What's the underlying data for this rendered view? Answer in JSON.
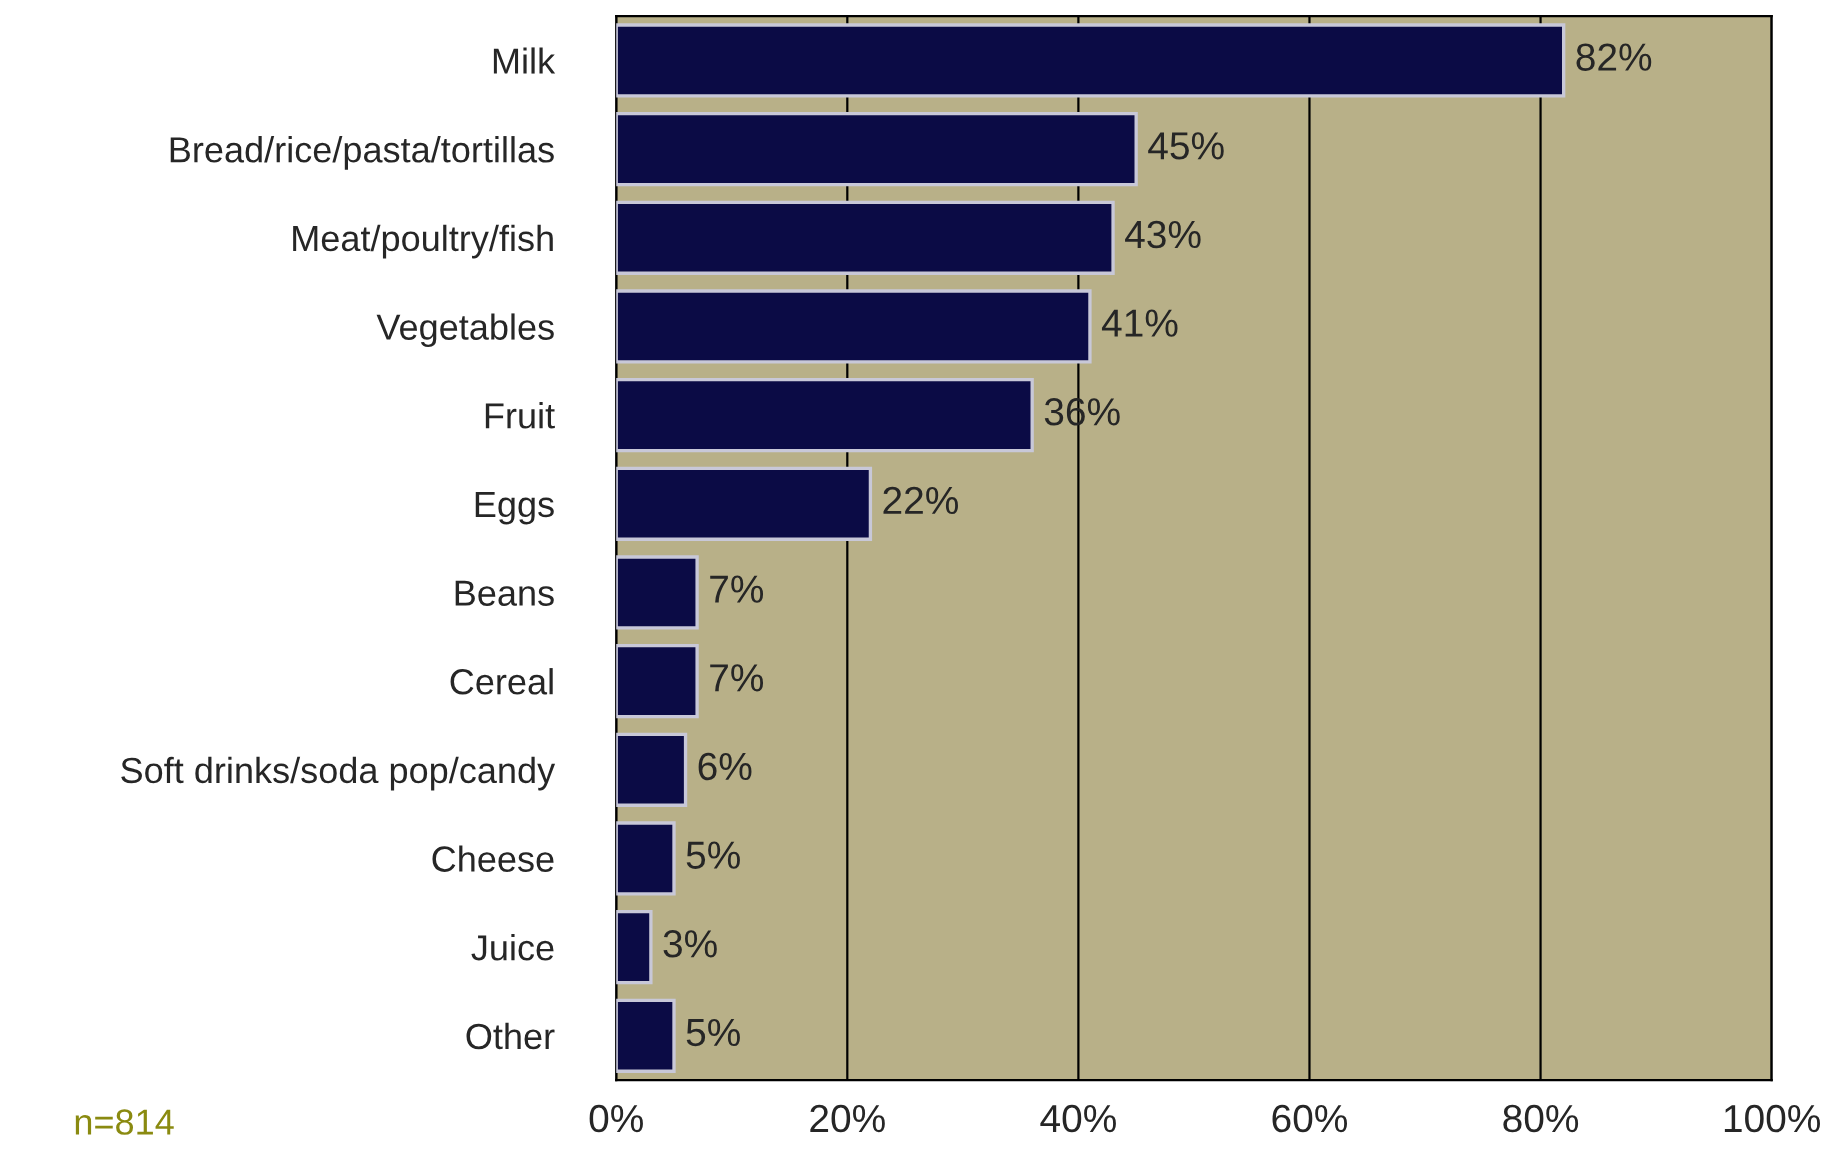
{
  "chart_data": {
    "type": "bar",
    "orientation": "horizontal",
    "categories": [
      "Milk",
      "Bread/rice/pasta/tortillas",
      "Meat/poultry/fish",
      "Vegetables",
      "Fruit",
      "Eggs",
      "Beans",
      "Cereal",
      "Soft drinks/soda pop/candy",
      "Cheese",
      "Juice",
      "Other"
    ],
    "values": [
      82,
      45,
      43,
      41,
      36,
      22,
      7,
      7,
      6,
      5,
      3,
      5
    ],
    "value_labels": [
      "82%",
      "45%",
      "43%",
      "41%",
      "36%",
      "22%",
      "7%",
      "7%",
      "6%",
      "5%",
      "3%",
      "5%"
    ],
    "color": "#0b0b45",
    "xlim": [
      0,
      100
    ],
    "xticks": [
      {
        "value": 0,
        "label": "0%"
      },
      {
        "value": 20,
        "label": "20%"
      },
      {
        "value": 40,
        "label": "40%"
      },
      {
        "value": 60,
        "label": "60%"
      },
      {
        "value": 80,
        "label": "80%"
      },
      {
        "value": 100,
        "label": "100%"
      }
    ],
    "grid": "x",
    "annotations": [
      "n=814"
    ]
  }
}
